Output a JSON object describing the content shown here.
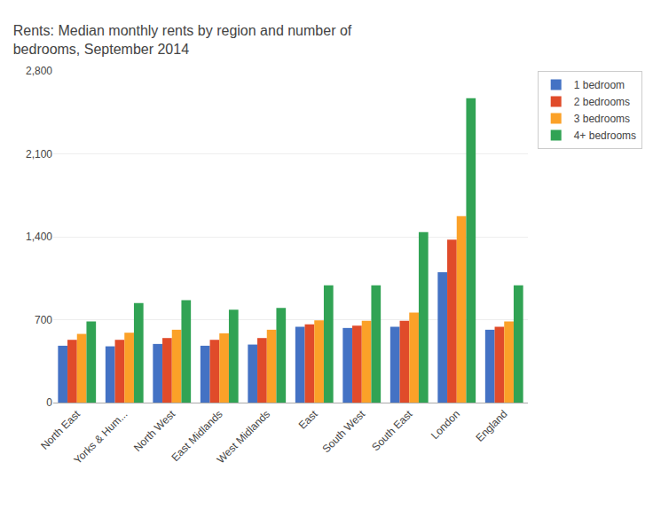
{
  "chart_data": {
    "type": "bar",
    "title": "Rents: Median monthly rents by region and number of\nbedrooms, September 2014",
    "categories": [
      "North East",
      "Yorks & Hum...",
      "North West",
      "East Midlands",
      "West Midlands",
      "East",
      "South West",
      "South East",
      "London",
      "England"
    ],
    "series": [
      {
        "name": "1 bedroom",
        "color": "#4472c4",
        "values": [
          480,
          475,
          495,
          480,
          490,
          640,
          630,
          640,
          1100,
          615
        ]
      },
      {
        "name": "2 bedrooms",
        "color": "#e04b2a",
        "values": [
          530,
          530,
          545,
          530,
          545,
          660,
          650,
          690,
          1375,
          640
        ]
      },
      {
        "name": "3 bedrooms",
        "color": "#fba128",
        "values": [
          580,
          590,
          615,
          585,
          615,
          695,
          690,
          760,
          1575,
          685
        ]
      },
      {
        "name": "4+ bedrooms",
        "color": "#31a354",
        "values": [
          685,
          840,
          865,
          785,
          800,
          990,
          990,
          1440,
          2570,
          990
        ]
      }
    ],
    "ylim": [
      0,
      2800
    ],
    "yticks": [
      0,
      700,
      {
        "value": 1400,
        "label": "1,400"
      },
      {
        "value": 2100,
        "label": "2,100"
      },
      {
        "value": 2800,
        "label": "2,800"
      }
    ],
    "grid": true,
    "legend": "upper right"
  }
}
